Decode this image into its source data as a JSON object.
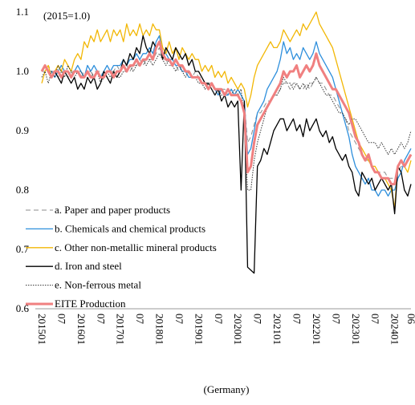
{
  "chart_data": {
    "type": "line",
    "annotation": "(2015=1.0)",
    "x_label": "(Germany)",
    "categories": [
      "201501",
      null,
      null,
      null,
      null,
      null,
      "07",
      null,
      null,
      null,
      null,
      null,
      "201601",
      null,
      null,
      null,
      null,
      null,
      "07",
      null,
      null,
      null,
      null,
      null,
      "201701",
      null,
      null,
      null,
      null,
      null,
      "07",
      null,
      null,
      null,
      null,
      null,
      "201801",
      null,
      null,
      null,
      null,
      null,
      "07",
      null,
      null,
      null,
      null,
      null,
      "201901",
      null,
      null,
      null,
      null,
      null,
      "07",
      null,
      null,
      null,
      null,
      null,
      "202001",
      null,
      null,
      null,
      null,
      null,
      "07",
      null,
      null,
      null,
      null,
      null,
      "202101",
      null,
      null,
      null,
      null,
      null,
      "07",
      null,
      null,
      null,
      null,
      null,
      "202201",
      null,
      null,
      null,
      null,
      null,
      "07",
      null,
      null,
      null,
      null,
      null,
      "202301",
      null,
      null,
      null,
      null,
      null,
      "07",
      null,
      null,
      null,
      null,
      null,
      "202401",
      null,
      null,
      null,
      null,
      "06"
    ],
    "ylim": [
      0.6,
      1.1
    ],
    "yticks": [
      0.6,
      0.7,
      0.8,
      0.9,
      {
        "value": 1,
        "label": "1.0"
      },
      1.1
    ],
    "grid": false,
    "legend": "lower left",
    "series": [
      {
        "name": "a. Paper and paper products",
        "color": "#8c8c8c",
        "linestyle": "dashed",
        "values": [
          1.0,
          1.0,
          1.01,
          1.0,
          1.0,
          0.99,
          1.0,
          1.0,
          0.99,
          1.0,
          1.0,
          1.0,
          0.99,
          1.0,
          1.0,
          0.99,
          1.0,
          1.0,
          1.0,
          0.99,
          1.0,
          1.0,
          1.0,
          1.01,
          1.0,
          1.01,
          1.01,
          1.0,
          1.01,
          1.01,
          1.02,
          1.01,
          1.02,
          1.02,
          1.02,
          1.03,
          1.04,
          1.02,
          1.02,
          1.01,
          1.01,
          1.01,
          1.0,
          1.01,
          1.0,
          1.0,
          0.99,
          1.0,
          0.99,
          0.99,
          0.98,
          0.98,
          0.98,
          0.97,
          0.97,
          0.97,
          0.97,
          0.96,
          0.97,
          0.96,
          0.96,
          0.96,
          0.95,
          0.88,
          0.89,
          0.91,
          0.93,
          0.93,
          0.94,
          0.95,
          0.95,
          0.96,
          0.96,
          0.97,
          0.98,
          0.98,
          0.97,
          0.98,
          0.98,
          0.97,
          0.97,
          0.98,
          0.97,
          0.98,
          0.99,
          0.98,
          0.98,
          0.97,
          0.96,
          0.96,
          0.95,
          0.94,
          0.93,
          0.92,
          0.9,
          0.89,
          0.88,
          0.87,
          0.86,
          0.85,
          0.85,
          0.84,
          0.84,
          0.83,
          0.83,
          0.83,
          0.82,
          0.82,
          0.82,
          0.83,
          0.84,
          0.84,
          0.85,
          0.86
        ]
      },
      {
        "name": "b. Chemicals and chemical products",
        "color": "#2e8fdc",
        "linestyle": "solid",
        "values": [
          1.0,
          1.01,
          1.0,
          1.0,
          0.99,
          1.0,
          1.01,
          1.0,
          1.0,
          0.99,
          1.0,
          1.01,
          1.0,
          0.99,
          1.01,
          1.0,
          1.01,
          1.0,
          0.99,
          1.0,
          1.01,
          1.0,
          1.01,
          1.01,
          1.01,
          1.02,
          1.01,
          1.02,
          1.02,
          1.03,
          1.02,
          1.03,
          1.03,
          1.04,
          1.03,
          1.05,
          1.06,
          1.03,
          1.03,
          1.02,
          1.02,
          1.01,
          1.01,
          1.0,
          1.0,
          0.99,
          0.99,
          0.99,
          0.99,
          0.98,
          0.98,
          0.97,
          0.98,
          0.97,
          0.96,
          0.97,
          0.96,
          0.96,
          0.97,
          0.96,
          0.97,
          0.96,
          0.95,
          0.86,
          0.87,
          0.9,
          0.93,
          0.94,
          0.95,
          0.97,
          0.98,
          0.99,
          1.0,
          1.02,
          1.05,
          1.03,
          1.04,
          1.02,
          1.03,
          1.02,
          1.04,
          1.03,
          1.02,
          1.03,
          1.05,
          1.03,
          1.02,
          1.01,
          1.0,
          0.99,
          0.97,
          0.95,
          0.93,
          0.91,
          0.89,
          0.86,
          0.84,
          0.83,
          0.82,
          0.81,
          0.82,
          0.8,
          0.8,
          0.79,
          0.8,
          0.8,
          0.79,
          0.8,
          0.8,
          0.82,
          0.83,
          0.85,
          0.86,
          0.87
        ]
      },
      {
        "name": "c. Other non-metallic mineral products",
        "color": "#f2b705",
        "linestyle": "solid",
        "values": [
          0.98,
          1.0,
          1.01,
          0.99,
          1.0,
          1.01,
          1.0,
          1.02,
          1.01,
          1.0,
          1.02,
          1.03,
          1.02,
          1.05,
          1.04,
          1.06,
          1.05,
          1.07,
          1.05,
          1.06,
          1.07,
          1.05,
          1.07,
          1.06,
          1.07,
          1.05,
          1.08,
          1.06,
          1.07,
          1.06,
          1.08,
          1.06,
          1.07,
          1.06,
          1.08,
          1.07,
          1.07,
          1.04,
          1.03,
          1.05,
          1.03,
          1.04,
          1.02,
          1.04,
          1.03,
          1.02,
          1.03,
          1.02,
          1.02,
          1.0,
          1.01,
          1.0,
          1.01,
          0.99,
          1.0,
          0.99,
          1.0,
          0.98,
          0.99,
          0.98,
          0.97,
          0.98,
          0.97,
          0.94,
          0.96,
          0.99,
          1.01,
          1.02,
          1.03,
          1.04,
          1.05,
          1.04,
          1.04,
          1.05,
          1.07,
          1.06,
          1.05,
          1.06,
          1.07,
          1.06,
          1.08,
          1.07,
          1.08,
          1.09,
          1.1,
          1.08,
          1.07,
          1.06,
          1.05,
          1.04,
          1.02,
          1.0,
          0.98,
          0.96,
          0.94,
          0.92,
          0.9,
          0.88,
          0.87,
          0.86,
          0.85,
          0.84,
          0.84,
          0.83,
          0.82,
          0.82,
          0.81,
          0.8,
          0.77,
          0.84,
          0.85,
          0.84,
          0.83,
          0.85
        ]
      },
      {
        "name": "d. Iron and steel",
        "color": "#000000",
        "linestyle": "solid",
        "values": [
          1.0,
          1.01,
          1.0,
          0.99,
          1.0,
          0.99,
          0.98,
          1.0,
          0.99,
          0.98,
          0.99,
          0.97,
          0.98,
          0.97,
          0.99,
          0.98,
          0.99,
          0.97,
          0.98,
          1.0,
          0.99,
          0.98,
          1.0,
          0.99,
          1.0,
          1.02,
          1.01,
          1.03,
          1.02,
          1.04,
          1.03,
          1.06,
          1.04,
          1.03,
          1.05,
          1.04,
          1.05,
          1.02,
          1.04,
          1.03,
          1.02,
          1.04,
          1.03,
          1.02,
          1.03,
          1.01,
          1.02,
          1.0,
          1.0,
          0.99,
          0.98,
          0.98,
          0.97,
          0.96,
          0.97,
          0.95,
          0.96,
          0.94,
          0.95,
          0.94,
          0.95,
          0.8,
          0.95,
          0.67,
          0.665,
          0.66,
          0.84,
          0.85,
          0.87,
          0.86,
          0.88,
          0.9,
          0.91,
          0.92,
          0.92,
          0.9,
          0.91,
          0.92,
          0.9,
          0.91,
          0.89,
          0.92,
          0.9,
          0.91,
          0.92,
          0.9,
          0.89,
          0.9,
          0.88,
          0.89,
          0.87,
          0.86,
          0.85,
          0.86,
          0.84,
          0.83,
          0.8,
          0.79,
          0.83,
          0.82,
          0.81,
          0.82,
          0.8,
          0.81,
          0.82,
          0.81,
          0.8,
          0.81,
          0.76,
          0.84,
          0.83,
          0.8,
          0.79,
          0.81
        ]
      },
      {
        "name": "e. Non-ferrous metal",
        "color": "#333333",
        "linestyle": "dotted",
        "values": [
          0.99,
          1.0,
          0.98,
          1.0,
          0.99,
          1.01,
          1.0,
          0.99,
          1.01,
          1.0,
          0.99,
          1.0,
          1.0,
          0.99,
          1.0,
          1.0,
          0.99,
          1.0,
          0.98,
          0.99,
          1.0,
          0.99,
          1.0,
          0.99,
          0.99,
          1.0,
          1.0,
          1.01,
          1.0,
          1.01,
          1.01,
          1.02,
          1.01,
          1.02,
          1.01,
          1.02,
          1.03,
          1.02,
          1.01,
          1.02,
          1.01,
          1.0,
          1.01,
          1.0,
          0.99,
          1.0,
          0.99,
          0.99,
          0.98,
          0.98,
          0.97,
          0.98,
          0.97,
          0.96,
          0.97,
          0.96,
          0.96,
          0.97,
          0.96,
          0.97,
          0.96,
          0.97,
          0.92,
          0.8,
          0.8,
          0.85,
          0.88,
          0.9,
          0.92,
          0.94,
          0.95,
          0.96,
          0.96,
          0.97,
          0.99,
          0.98,
          0.98,
          0.97,
          0.98,
          0.97,
          0.98,
          0.97,
          0.98,
          0.98,
          0.99,
          0.98,
          0.97,
          0.96,
          0.96,
          0.95,
          0.94,
          0.93,
          0.93,
          0.92,
          0.91,
          0.92,
          0.92,
          0.91,
          0.9,
          0.89,
          0.88,
          0.88,
          0.88,
          0.87,
          0.88,
          0.87,
          0.86,
          0.87,
          0.86,
          0.87,
          0.88,
          0.87,
          0.88,
          0.9
        ]
      },
      {
        "name": "EITE Production",
        "color": "#f08080",
        "linestyle": "thick",
        "values": [
          1.0,
          1.01,
          1.0,
          0.99,
          1.0,
          1.0,
          0.99,
          1.0,
          1.0,
          0.99,
          1.0,
          1.0,
          0.99,
          0.99,
          1.0,
          0.99,
          0.99,
          1.0,
          0.99,
          0.99,
          1.0,
          1.0,
          0.99,
          1.0,
          1.0,
          1.01,
          1.0,
          1.01,
          1.01,
          1.02,
          1.01,
          1.02,
          1.02,
          1.03,
          1.02,
          1.04,
          1.05,
          1.03,
          1.02,
          1.02,
          1.01,
          1.02,
          1.01,
          1.01,
          1.0,
          1.0,
          0.99,
          0.99,
          0.99,
          0.98,
          0.98,
          0.97,
          0.98,
          0.97,
          0.97,
          0.97,
          0.96,
          0.97,
          0.96,
          0.96,
          0.96,
          0.95,
          0.93,
          0.83,
          0.84,
          0.88,
          0.91,
          0.92,
          0.93,
          0.94,
          0.95,
          0.96,
          0.97,
          0.98,
          1.0,
          0.99,
          1.0,
          1.0,
          1.01,
          0.99,
          1.0,
          1.01,
          1.0,
          1.01,
          1.03,
          1.01,
          1.0,
          0.99,
          0.98,
          0.97,
          0.97,
          0.96,
          0.95,
          0.94,
          0.93,
          0.91,
          0.89,
          0.88,
          0.86,
          0.85,
          0.86,
          0.84,
          0.83,
          0.83,
          0.82,
          0.82,
          0.82,
          0.81,
          0.81,
          0.84,
          0.85,
          0.84,
          0.85,
          0.86
        ]
      }
    ]
  }
}
